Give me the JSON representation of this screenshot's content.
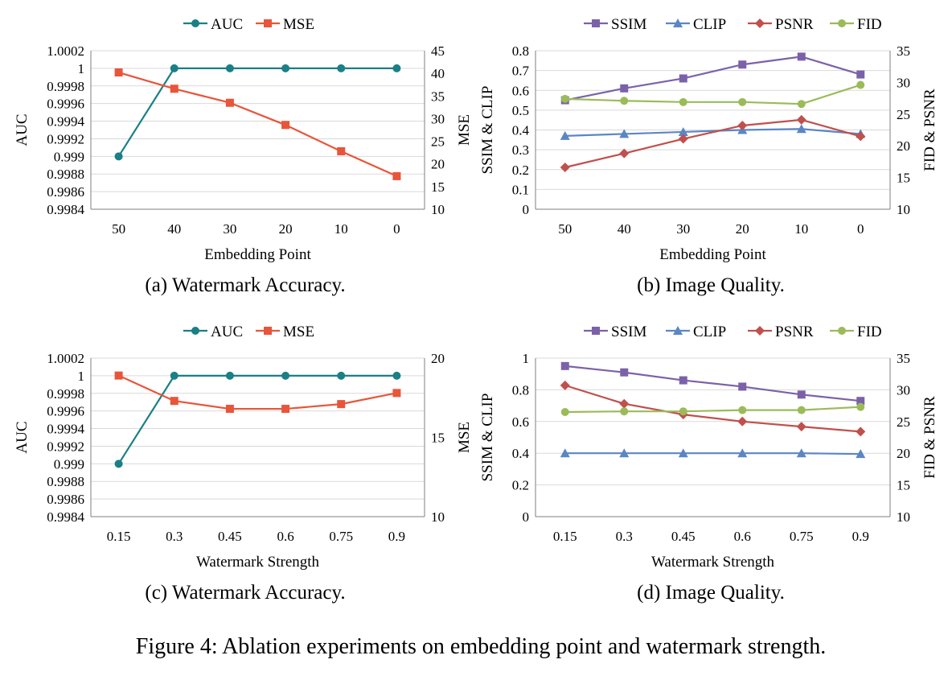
{
  "figure": {
    "caption": "Figure 4: Ablation experiments on embedding point and watermark strength."
  },
  "colors": {
    "AUC": "#1b7f86",
    "MSE": "#e8553a",
    "SSIM": "#7b62a8",
    "CLIP": "#5b86c4",
    "PSNR": "#c0504d",
    "FID": "#9bbb59",
    "grid": "#d9d9d9",
    "axis": "#7f7f7f"
  },
  "chart_data": [
    {
      "id": "a",
      "type": "line",
      "subcaption": "(a) Watermark Accuracy.",
      "xlabel": "Embedding Point",
      "ylabel_left": "AUC",
      "ylabel_right": "MSE",
      "categories": [
        "50",
        "40",
        "30",
        "20",
        "10",
        "0"
      ],
      "yticks_left": [
        "0.9984",
        "0.9986",
        "0.9988",
        "0.999",
        "0.9992",
        "0.9994",
        "0.9996",
        "0.9998",
        "1",
        "1.0002"
      ],
      "yticks_right": [
        "10",
        "15",
        "20",
        "25",
        "30",
        "35",
        "40",
        "45"
      ],
      "ylim_left": [
        0.9984,
        1.0002
      ],
      "ylim_right": [
        10,
        45
      ],
      "grid": true,
      "legend_position": "top-center",
      "series": [
        {
          "name": "AUC",
          "axis": "left",
          "marker": "circle",
          "values": [
            0.999,
            1,
            1,
            1,
            1,
            1
          ]
        },
        {
          "name": "MSE",
          "axis": "right",
          "marker": "square",
          "values": [
            40.2,
            36.6,
            33.5,
            28.6,
            22.8,
            17.3
          ]
        }
      ]
    },
    {
      "id": "b",
      "type": "line",
      "subcaption": "(b) Image Quality.",
      "xlabel": "Embedding Point",
      "ylabel_left": "SSIM & CLIP",
      "ylabel_right": "FID & PSNR",
      "categories": [
        "50",
        "40",
        "30",
        "20",
        "10",
        "0"
      ],
      "yticks_left": [
        "0",
        "0.1",
        "0.2",
        "0.3",
        "0.4",
        "0.5",
        "0.6",
        "0.7",
        "0.8"
      ],
      "yticks_right": [
        "10",
        "15",
        "20",
        "25",
        "30",
        "35"
      ],
      "ylim_left": [
        0,
        0.8
      ],
      "ylim_right": [
        10,
        35
      ],
      "grid": true,
      "legend_position": "top-center",
      "series": [
        {
          "name": "SSIM",
          "axis": "left",
          "marker": "square",
          "values": [
            0.55,
            0.61,
            0.66,
            0.73,
            0.77,
            0.68
          ]
        },
        {
          "name": "CLIP",
          "axis": "left",
          "marker": "triangle",
          "values": [
            0.37,
            0.38,
            0.39,
            0.4,
            0.405,
            0.38
          ]
        },
        {
          "name": "PSNR",
          "axis": "right",
          "marker": "diamond",
          "values": [
            16.6,
            18.8,
            21.1,
            23.2,
            24.1,
            21.5
          ]
        },
        {
          "name": "FID",
          "axis": "right",
          "marker": "circle",
          "values": [
            27.4,
            27.1,
            26.9,
            26.9,
            26.6,
            29.6
          ]
        }
      ]
    },
    {
      "id": "c",
      "type": "line",
      "subcaption": "(c) Watermark Accuracy.",
      "xlabel": "Watermark Strength",
      "ylabel_left": "AUC",
      "ylabel_right": "MSE",
      "categories": [
        "0.15",
        "0.3",
        "0.45",
        "0.6",
        "0.75",
        "0.9"
      ],
      "yticks_left": [
        "0.9984",
        "0.9986",
        "0.9988",
        "0.999",
        "0.9992",
        "0.9994",
        "0.9996",
        "0.9998",
        "1",
        "1.0002"
      ],
      "yticks_right": [
        "10",
        "15",
        "20"
      ],
      "ylim_left": [
        0.9984,
        1.0002
      ],
      "ylim_right": [
        10,
        20
      ],
      "grid": true,
      "legend_position": "top-center",
      "series": [
        {
          "name": "AUC",
          "axis": "left",
          "marker": "circle",
          "values": [
            0.999,
            1,
            1,
            1,
            1,
            1
          ]
        },
        {
          "name": "MSE",
          "axis": "right",
          "marker": "square",
          "values": [
            18.9,
            17.3,
            16.8,
            16.8,
            17.1,
            17.8
          ]
        }
      ]
    },
    {
      "id": "d",
      "type": "line",
      "subcaption": "(d) Image Quality.",
      "xlabel": "Watermark Strength",
      "ylabel_left": "SSIM & CLIP",
      "ylabel_right": "FID & PSNR",
      "categories": [
        "0.15",
        "0.3",
        "0.45",
        "0.6",
        "0.75",
        "0.9"
      ],
      "yticks_left": [
        "0",
        "0.2",
        "0.4",
        "0.6",
        "0.8",
        "1"
      ],
      "yticks_right": [
        "10",
        "15",
        "20",
        "25",
        "30",
        "35"
      ],
      "ylim_left": [
        0,
        1
      ],
      "ylim_right": [
        10,
        35
      ],
      "grid": true,
      "legend_position": "top-center",
      "series": [
        {
          "name": "SSIM",
          "axis": "left",
          "marker": "square",
          "values": [
            0.95,
            0.91,
            0.86,
            0.82,
            0.77,
            0.73
          ]
        },
        {
          "name": "CLIP",
          "axis": "left",
          "marker": "triangle",
          "values": [
            0.4,
            0.4,
            0.4,
            0.4,
            0.4,
            0.395
          ]
        },
        {
          "name": "PSNR",
          "axis": "right",
          "marker": "diamond",
          "values": [
            30.7,
            27.8,
            26.1,
            25.0,
            24.2,
            23.4
          ]
        },
        {
          "name": "FID",
          "axis": "right",
          "marker": "circle",
          "values": [
            26.5,
            26.6,
            26.6,
            26.8,
            26.8,
            27.3
          ]
        }
      ]
    }
  ]
}
